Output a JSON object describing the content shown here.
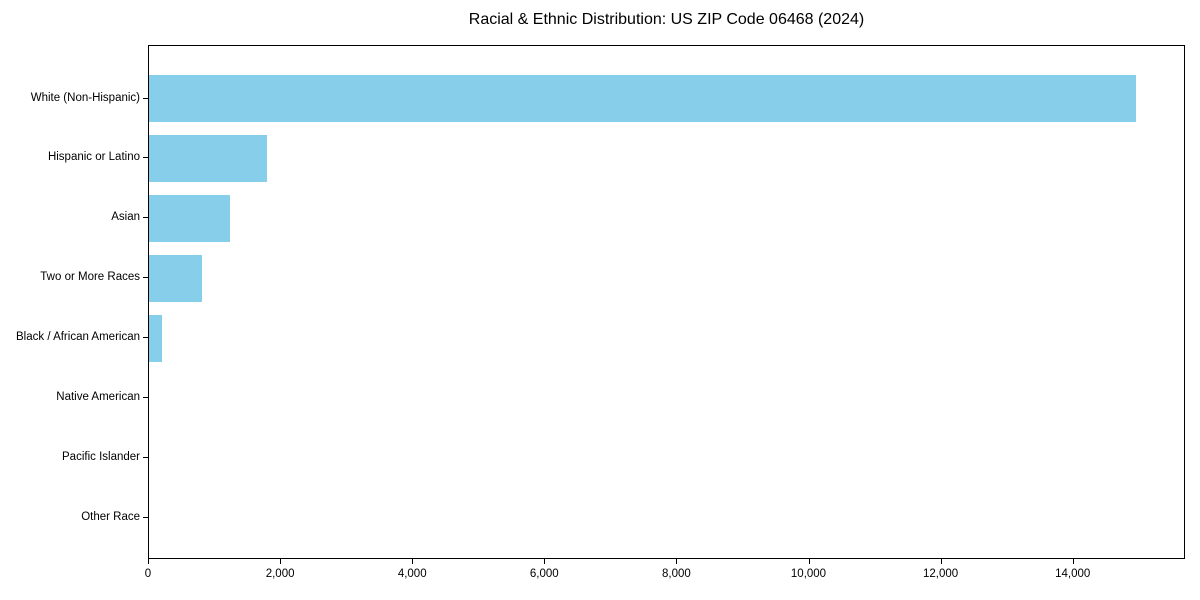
{
  "title": "Racial & Ethnic Distribution: US ZIP Code 06468 (2024)",
  "colors": {
    "bar": "#87CEEB",
    "axis": "#000000",
    "text": "#000000",
    "background": "#FFFFFF"
  },
  "chart_data": {
    "type": "bar",
    "orientation": "horizontal",
    "title": "Racial & Ethnic Distribution: US ZIP Code 06468 (2024)",
    "categories": [
      "White (Non-Hispanic)",
      "Hispanic or Latino",
      "Asian",
      "Two or More Races",
      "Black / African American",
      "Native American",
      "Pacific Islander",
      "Other Race"
    ],
    "values": [
      14950,
      1780,
      1230,
      800,
      190,
      0,
      0,
      0
    ],
    "xlabel": "",
    "ylabel": "",
    "xlim": [
      0,
      15700
    ],
    "xticks": [
      0,
      2000,
      4000,
      6000,
      8000,
      10000,
      12000,
      14000
    ],
    "xtick_labels": [
      "0",
      "2,000",
      "4,000",
      "6,000",
      "8,000",
      "10,000",
      "12,000",
      "14,000"
    ],
    "grid": false,
    "legend": false,
    "bar_color": "#87CEEB"
  }
}
